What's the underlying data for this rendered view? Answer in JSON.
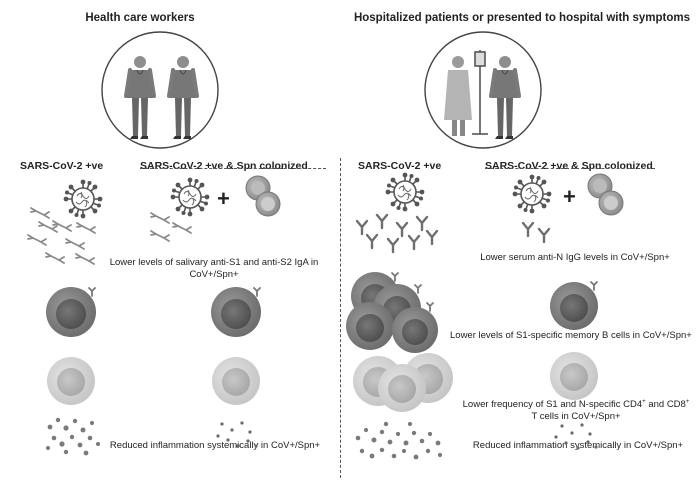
{
  "left_panel": {
    "title": "Health care workers",
    "col1_label": "SARS-CoV-2 +ve",
    "col2_label": "SARS-CoV-2 +ve &  Spn colonized",
    "iga_finding": "Lower levels of salivary anti-S1 and anti-S2 IgA  in CoV+/Spn+",
    "inflammation_finding": "Reduced inflammation systemically  in CoV+/Spn+"
  },
  "right_panel": {
    "title": "Hospitalized patients or presented to hospital with symptoms",
    "col1_label": "SARS-CoV-2 +ve",
    "col2_label": "SARS-CoV-2 +ve &  Spn colonized",
    "igg_finding": "Lower serum anti-N IgG levels in CoV+/Spn+",
    "bcell_finding": "Lower levels of  S1-specific memory B cells  in CoV+/Spn+",
    "tcell_finding_line1": "Lower frequency of S1 and N-specific CD4",
    "tcell_finding_sup1": "+",
    "tcell_finding_mid": " and CD8",
    "tcell_finding_sup2": "+",
    "tcell_finding_line2": "T cells in CoV+/Spn+",
    "inflammation_finding": "Reduced inflammation systemically  in CoV+/Spn+"
  },
  "symbols": {
    "plus": "+"
  },
  "colors": {
    "virus": "#555555",
    "antibody": "#777777",
    "bcell_outer": "#777777",
    "bcell_inner": "#555555",
    "tcell_outer": "#cccccc",
    "tcell_inner": "#aaaaaa",
    "pneumococcus": "#999999"
  }
}
